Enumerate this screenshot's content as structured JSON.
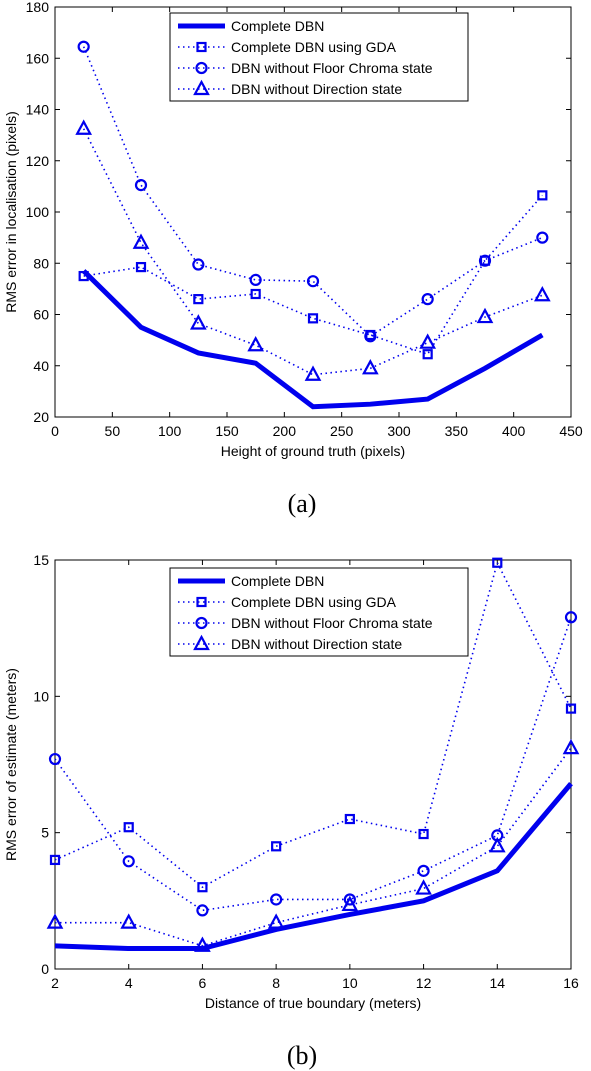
{
  "colors": {
    "series": "#0000ee",
    "axis": "#000000"
  },
  "chart_data": [
    {
      "type": "line",
      "caption": "(a)",
      "xlabel": "Height of ground truth (pixels)",
      "ylabel": "RMS error in localisation (pixels)",
      "xlim": [
        0,
        450
      ],
      "ylim": [
        20,
        180
      ],
      "xticks": [
        0,
        50,
        100,
        150,
        200,
        250,
        300,
        350,
        400,
        450
      ],
      "yticks": [
        20,
        40,
        60,
        80,
        100,
        120,
        140,
        160,
        180
      ],
      "legend_position": "top-center",
      "series": [
        {
          "name": "Complete DBN",
          "style": "solid",
          "marker": "none",
          "x": [
            25,
            75,
            125,
            175,
            225,
            275,
            325,
            375,
            425
          ],
          "y": [
            77,
            55,
            45,
            41,
            24,
            25,
            27,
            39,
            52
          ]
        },
        {
          "name": "Complete DBN using GDA",
          "style": "dotted",
          "marker": "square",
          "x": [
            25,
            75,
            125,
            175,
            225,
            275,
            325,
            375,
            425
          ],
          "y": [
            75,
            78.5,
            66,
            68,
            58.5,
            52,
            44.5,
            81,
            106.5
          ]
        },
        {
          "name": "DBN without Floor Chroma state",
          "style": "dotted",
          "marker": "circle",
          "x": [
            25,
            75,
            125,
            175,
            225,
            275,
            325,
            375,
            425
          ],
          "y": [
            164.5,
            110.5,
            79.5,
            73.5,
            73,
            51.5,
            66,
            81,
            90
          ]
        },
        {
          "name": "DBN without Direction state",
          "style": "dotted",
          "marker": "triangle",
          "x": [
            25,
            75,
            125,
            175,
            225,
            275,
            325,
            375,
            425
          ],
          "y": [
            132.5,
            88,
            56.5,
            48,
            36.5,
            39,
            49,
            59,
            67.5
          ]
        }
      ]
    },
    {
      "type": "line",
      "caption": "(b)",
      "xlabel": "Distance of true boundary (meters)",
      "ylabel": "RMS error of estimate (meters)",
      "xlim": [
        2,
        16
      ],
      "ylim": [
        0,
        15
      ],
      "xticks": [
        2,
        4,
        6,
        8,
        10,
        12,
        14,
        16
      ],
      "yticks": [
        0,
        5,
        10,
        15
      ],
      "legend_position": "top-center",
      "series": [
        {
          "name": "Complete DBN",
          "style": "solid",
          "marker": "none",
          "x": [
            2,
            4,
            6,
            8,
            10,
            12,
            14,
            16
          ],
          "y": [
            0.85,
            0.75,
            0.75,
            1.45,
            2.0,
            2.5,
            3.6,
            6.8
          ]
        },
        {
          "name": "Complete DBN using GDA",
          "style": "dotted",
          "marker": "square",
          "x": [
            2,
            4,
            6,
            8,
            10,
            12,
            14,
            16
          ],
          "y": [
            4.0,
            5.2,
            3.0,
            4.5,
            5.5,
            4.95,
            14.9,
            9.55
          ]
        },
        {
          "name": "DBN without Floor Chroma state",
          "style": "dotted",
          "marker": "circle",
          "x": [
            2,
            4,
            6,
            8,
            10,
            12,
            14,
            16
          ],
          "y": [
            7.7,
            3.95,
            2.15,
            2.55,
            2.55,
            3.6,
            4.9,
            12.9
          ]
        },
        {
          "name": "DBN without Direction state",
          "style": "dotted",
          "marker": "triangle",
          "x": [
            2,
            4,
            6,
            8,
            10,
            12,
            14,
            16
          ],
          "y": [
            1.7,
            1.7,
            0.85,
            1.7,
            2.35,
            2.95,
            4.5,
            8.1
          ]
        }
      ]
    }
  ]
}
